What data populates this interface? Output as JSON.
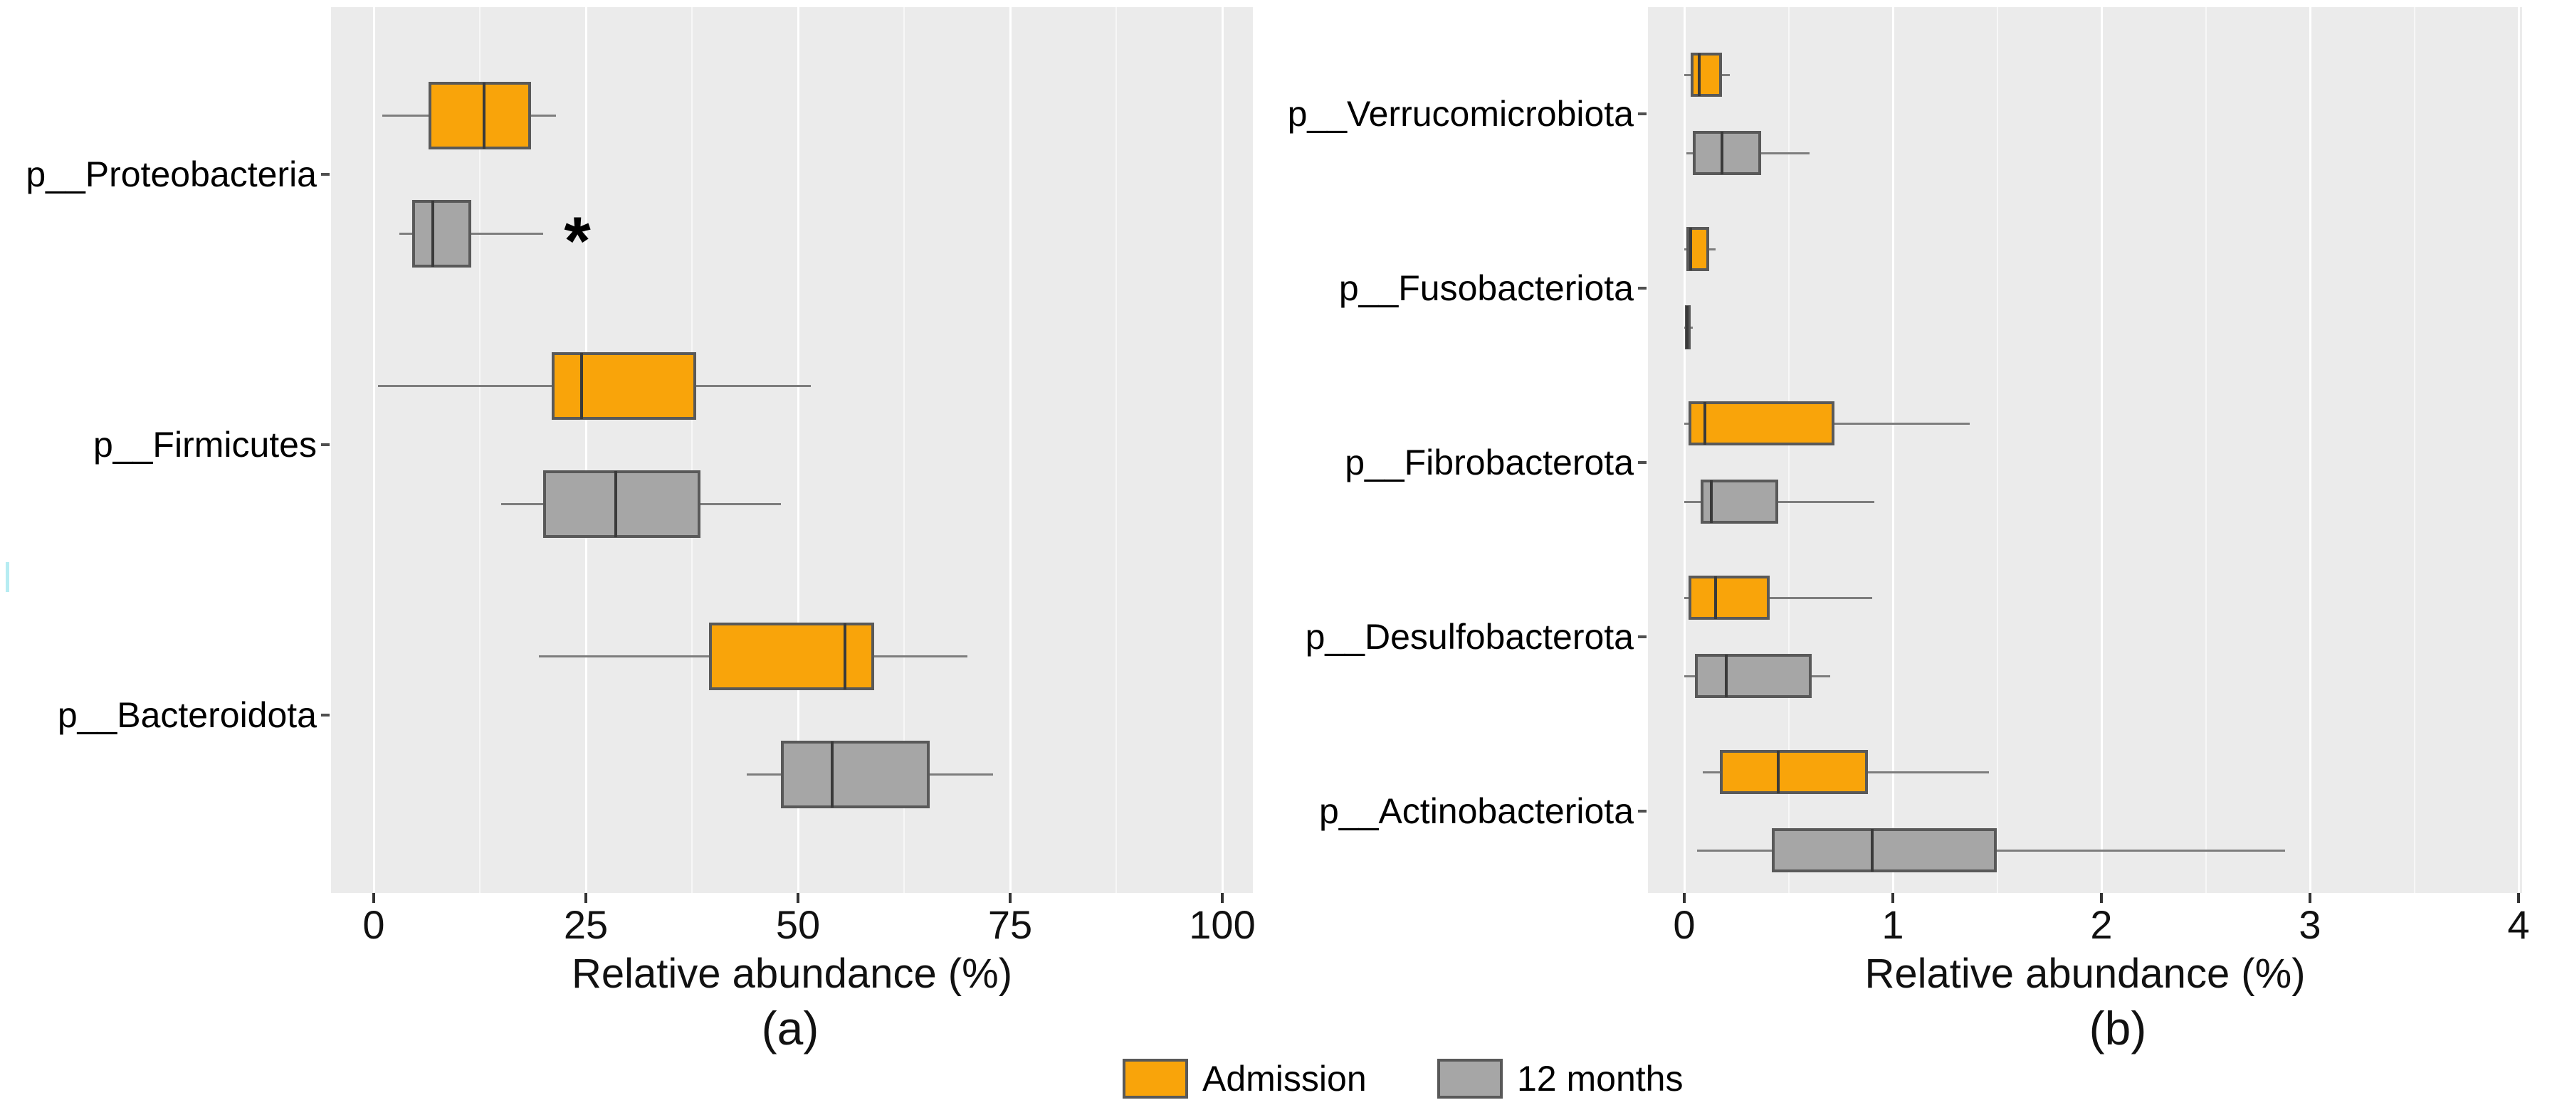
{
  "figure": {
    "description": "Grouped horizontal boxplots of gut microbiome phylum relative abundance, Admission vs 12 months",
    "panel_count": 2
  },
  "colors": {
    "admission": "#F9A40A",
    "twelve_months": "#A6A6A6",
    "box_border": "#595959",
    "median": "#3a3a3a",
    "whisker": "#7d7d7d",
    "panel_bg": "#EBEBEB",
    "gridline": "#FFFFFF",
    "text": "#000000",
    "artifact": "#A9E9F0"
  },
  "legend": {
    "items": [
      {
        "label": "Admission",
        "color": "#F9A40A"
      },
      {
        "label": "12 months",
        "color": "#A6A6A6"
      }
    ]
  },
  "captions": {
    "a": "(a)",
    "b": "(b)"
  },
  "chart_data": [
    {
      "id": "a",
      "type": "boxplot",
      "orientation": "horizontal",
      "xlabel": "Relative abundance (%)",
      "xlim": [
        0,
        100
      ],
      "xticks": [
        0,
        25,
        50,
        75,
        100
      ],
      "minor_gridline_step": 12.5,
      "grid": true,
      "categories": [
        "p__Proteobacteria",
        "p__Firmicutes",
        "p__Bacteroidota"
      ],
      "series": [
        {
          "name": "Admission",
          "color": "#F9A40A",
          "boxes": [
            {
              "category": "p__Proteobacteria",
              "whisker_low": 1,
              "q1": 6.5,
              "median": 13,
              "q3": 18.5,
              "whisker_high": 21.5
            },
            {
              "category": "p__Firmicutes",
              "whisker_low": 0.5,
              "q1": 21,
              "median": 24.5,
              "q3": 38,
              "whisker_high": 51.5
            },
            {
              "category": "p__Bacteroidota",
              "whisker_low": 19.5,
              "q1": 39.5,
              "median": 55.5,
              "q3": 59,
              "whisker_high": 70
            }
          ]
        },
        {
          "name": "12 months",
          "color": "#A6A6A6",
          "boxes": [
            {
              "category": "p__Proteobacteria",
              "whisker_low": 3,
              "q1": 4.5,
              "median": 7,
              "q3": 11.5,
              "whisker_high": 20
            },
            {
              "category": "p__Firmicutes",
              "whisker_low": 15,
              "q1": 20,
              "median": 28.5,
              "q3": 38.5,
              "whisker_high": 48
            },
            {
              "category": "p__Bacteroidota",
              "whisker_low": 44,
              "q1": 48,
              "median": 54,
              "q3": 65.5,
              "whisker_high": 73
            }
          ]
        }
      ],
      "annotations": [
        {
          "text": "*",
          "x": 24,
          "category": "p__Proteobacteria",
          "series": "12 months"
        }
      ]
    },
    {
      "id": "b",
      "type": "boxplot",
      "orientation": "horizontal",
      "xlabel": "Relative abundance (%)",
      "xlim": [
        0,
        4
      ],
      "xticks": [
        0,
        1,
        2,
        3,
        4
      ],
      "minor_gridline_step": 0.5,
      "grid": true,
      "categories": [
        "p__Verrucomicrobiota",
        "p__Fusobacteriota",
        "p__Fibrobacterota",
        "p__Desulfobacterota",
        "p__Actinobacteriota"
      ],
      "series": [
        {
          "name": "Admission",
          "color": "#F9A40A",
          "boxes": [
            {
              "category": "p__Verrucomicrobiota",
              "whisker_low": 0,
              "q1": 0.03,
              "median": 0.07,
              "q3": 0.18,
              "whisker_high": 0.22
            },
            {
              "category": "p__Fusobacteriota",
              "whisker_low": 0,
              "q1": 0.01,
              "median": 0.03,
              "q3": 0.12,
              "whisker_high": 0.15
            },
            {
              "category": "p__Fibrobacterota",
              "whisker_low": 0,
              "q1": 0.02,
              "median": 0.1,
              "q3": 0.72,
              "whisker_high": 1.37
            },
            {
              "category": "p__Desulfobacterota",
              "whisker_low": 0,
              "q1": 0.02,
              "median": 0.15,
              "q3": 0.41,
              "whisker_high": 0.9
            },
            {
              "category": "p__Actinobacteriota",
              "whisker_low": 0.09,
              "q1": 0.17,
              "median": 0.45,
              "q3": 0.88,
              "whisker_high": 1.46
            }
          ]
        },
        {
          "name": "12 months",
          "color": "#A6A6A6",
          "boxes": [
            {
              "category": "p__Verrucomicrobiota",
              "whisker_low": 0.01,
              "q1": 0.04,
              "median": 0.18,
              "q3": 0.37,
              "whisker_high": 0.6
            },
            {
              "category": "p__Fusobacteriota",
              "whisker_low": 0,
              "q1": 0.005,
              "median": 0.015,
              "q3": 0.03,
              "whisker_high": 0.04
            },
            {
              "category": "p__Fibrobacterota",
              "whisker_low": 0,
              "q1": 0.08,
              "median": 0.13,
              "q3": 0.45,
              "whisker_high": 0.91
            },
            {
              "category": "p__Desulfobacterota",
              "whisker_low": 0,
              "q1": 0.05,
              "median": 0.2,
              "q3": 0.61,
              "whisker_high": 0.7
            },
            {
              "category": "p__Actinobacteriota",
              "whisker_low": 0.06,
              "q1": 0.42,
              "median": 0.9,
              "q3": 1.5,
              "whisker_high": 2.88
            }
          ]
        }
      ],
      "annotations": []
    }
  ]
}
